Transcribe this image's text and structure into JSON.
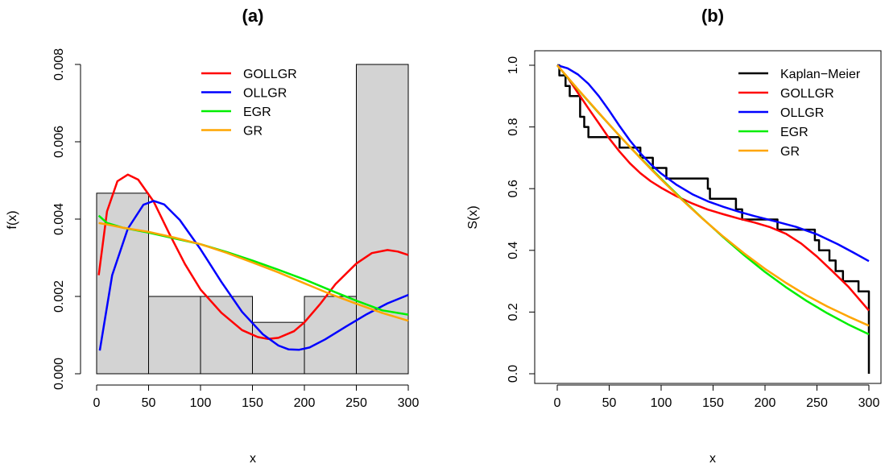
{
  "chart_data": [
    {
      "panel": "(a)",
      "type": "histogram",
      "title": "(a)",
      "xlabel": "x",
      "ylabel": "f(x)",
      "xlim": [
        0,
        300
      ],
      "ylim": [
        0,
        0.008
      ],
      "xticks": [
        0,
        50,
        100,
        150,
        200,
        250,
        300
      ],
      "yticks": [
        0,
        0.002,
        0.004,
        0.006,
        0.008
      ],
      "ytick_labels": [
        "0.000",
        "0.002",
        "0.004",
        "0.006",
        "0.008"
      ],
      "bars": [
        {
          "from": 0,
          "to": 50,
          "density": 0.00467
        },
        {
          "from": 50,
          "to": 100,
          "density": 0.002
        },
        {
          "from": 100,
          "to": 150,
          "density": 0.002
        },
        {
          "from": 150,
          "to": 200,
          "density": 0.00133
        },
        {
          "from": 200,
          "to": 250,
          "density": 0.002
        },
        {
          "from": 250,
          "to": 300,
          "density": 0.008
        }
      ],
      "legend_position": "top-right",
      "series": [
        {
          "name": "GOLLGR",
          "color": "#ff0000",
          "x": [
            2,
            10,
            20,
            30,
            40,
            55,
            70,
            85,
            100,
            120,
            140,
            155,
            165,
            175,
            190,
            200,
            215,
            230,
            250,
            265,
            280,
            290,
            300
          ],
          "y": [
            0.00255,
            0.0042,
            0.00498,
            0.00515,
            0.00502,
            0.00445,
            0.00362,
            0.00284,
            0.00218,
            0.00158,
            0.00113,
            0.00095,
            0.0009,
            0.00093,
            0.0011,
            0.00133,
            0.0018,
            0.00232,
            0.00285,
            0.00312,
            0.0032,
            0.00316,
            0.00307
          ]
        },
        {
          "name": "OLLGR",
          "color": "#0000ff",
          "x": [
            3,
            15,
            30,
            45,
            55,
            65,
            80,
            100,
            120,
            140,
            160,
            175,
            185,
            195,
            205,
            220,
            240,
            260,
            280,
            300
          ],
          "y": [
            0.0006,
            0.00255,
            0.00375,
            0.00437,
            0.00447,
            0.00438,
            0.00398,
            0.00322,
            0.00238,
            0.0016,
            0.00102,
            0.00073,
            0.00063,
            0.00062,
            0.00068,
            0.00089,
            0.00122,
            0.00154,
            0.00182,
            0.00204
          ]
        },
        {
          "name": "EGR",
          "color": "#00ee00",
          "x": [
            2,
            10,
            25,
            50,
            75,
            100,
            125,
            150,
            175,
            200,
            225,
            250,
            275,
            300
          ],
          "y": [
            0.00409,
            0.0039,
            0.00378,
            0.00365,
            0.0035,
            0.00335,
            0.00315,
            0.00293,
            0.00269,
            0.00244,
            0.00216,
            0.00189,
            0.00164,
            0.00153
          ]
        },
        {
          "name": "GR",
          "color": "#ffa500",
          "x": [
            2,
            10,
            25,
            50,
            75,
            100,
            125,
            150,
            175,
            200,
            225,
            250,
            275,
            300
          ],
          "y": [
            0.0039,
            0.00386,
            0.00378,
            0.00367,
            0.00352,
            0.00335,
            0.00313,
            0.00288,
            0.00262,
            0.00234,
            0.00206,
            0.00181,
            0.00157,
            0.00137
          ]
        }
      ]
    },
    {
      "panel": "(b)",
      "type": "line",
      "title": "(b)",
      "xlabel": "x",
      "ylabel": "S(x)",
      "xlim": [
        0,
        300
      ],
      "ylim": [
        0,
        1
      ],
      "xticks": [
        0,
        50,
        100,
        150,
        200,
        250,
        300
      ],
      "yticks": [
        0,
        0.2,
        0.4,
        0.6,
        0.8,
        1
      ],
      "ytick_labels": [
        "0.0",
        "0.2",
        "0.4",
        "0.6",
        "0.8",
        "1.0"
      ],
      "legend_position": "top-right",
      "series": [
        {
          "name": "Kaplan−Meier",
          "color": "#000000",
          "step": true,
          "x": [
            0,
            2,
            8,
            12,
            22,
            26,
            30,
            60,
            80,
            92,
            105,
            145,
            147,
            172,
            178,
            182,
            205,
            212,
            245,
            248,
            252,
            262,
            268,
            275,
            290,
            300,
            300
          ],
          "y": [
            1.0,
            0.967,
            0.933,
            0.9,
            0.833,
            0.8,
            0.767,
            0.733,
            0.7,
            0.667,
            0.633,
            0.6,
            0.567,
            0.533,
            0.5,
            0.5,
            0.5,
            0.467,
            0.467,
            0.433,
            0.4,
            0.367,
            0.333,
            0.3,
            0.267,
            0.267,
            0.0
          ]
        },
        {
          "name": "GOLLGR",
          "color": "#ff0000",
          "x": [
            0,
            10,
            20,
            30,
            40,
            50,
            60,
            70,
            80,
            90,
            100,
            115,
            130,
            145,
            160,
            175,
            190,
            205,
            220,
            235,
            250,
            265,
            280,
            300
          ],
          "y": [
            1.0,
            0.96,
            0.91,
            0.86,
            0.812,
            0.763,
            0.72,
            0.682,
            0.65,
            0.624,
            0.603,
            0.575,
            0.552,
            0.532,
            0.517,
            0.503,
            0.49,
            0.475,
            0.454,
            0.422,
            0.38,
            0.332,
            0.283,
            0.205
          ]
        },
        {
          "name": "OLLGR",
          "color": "#0000ff",
          "x": [
            0,
            10,
            20,
            30,
            40,
            50,
            60,
            70,
            80,
            90,
            100,
            115,
            130,
            145,
            160,
            175,
            190,
            210,
            230,
            250,
            270,
            285,
            300
          ],
          "y": [
            1.0,
            0.99,
            0.97,
            0.94,
            0.9,
            0.853,
            0.803,
            0.756,
            0.715,
            0.679,
            0.649,
            0.612,
            0.582,
            0.559,
            0.541,
            0.525,
            0.511,
            0.494,
            0.476,
            0.452,
            0.42,
            0.393,
            0.365
          ]
        },
        {
          "name": "EGR",
          "color": "#00ee00",
          "x": [
            0,
            10,
            20,
            30,
            40,
            50,
            60,
            70,
            80,
            90,
            100,
            120,
            140,
            160,
            180,
            200,
            220,
            240,
            260,
            280,
            300
          ],
          "y": [
            1.0,
            0.96,
            0.921,
            0.883,
            0.845,
            0.808,
            0.771,
            0.735,
            0.7,
            0.666,
            0.632,
            0.566,
            0.503,
            0.442,
            0.384,
            0.33,
            0.281,
            0.236,
            0.196,
            0.16,
            0.128
          ]
        },
        {
          "name": "GR",
          "color": "#ffa500",
          "x": [
            0,
            10,
            20,
            30,
            40,
            50,
            60,
            70,
            80,
            90,
            100,
            120,
            140,
            160,
            180,
            200,
            220,
            240,
            260,
            280,
            300
          ],
          "y": [
            1.0,
            0.961,
            0.922,
            0.884,
            0.846,
            0.808,
            0.771,
            0.735,
            0.699,
            0.664,
            0.63,
            0.564,
            0.502,
            0.444,
            0.39,
            0.34,
            0.295,
            0.254,
            0.218,
            0.186,
            0.156
          ]
        }
      ]
    }
  ]
}
